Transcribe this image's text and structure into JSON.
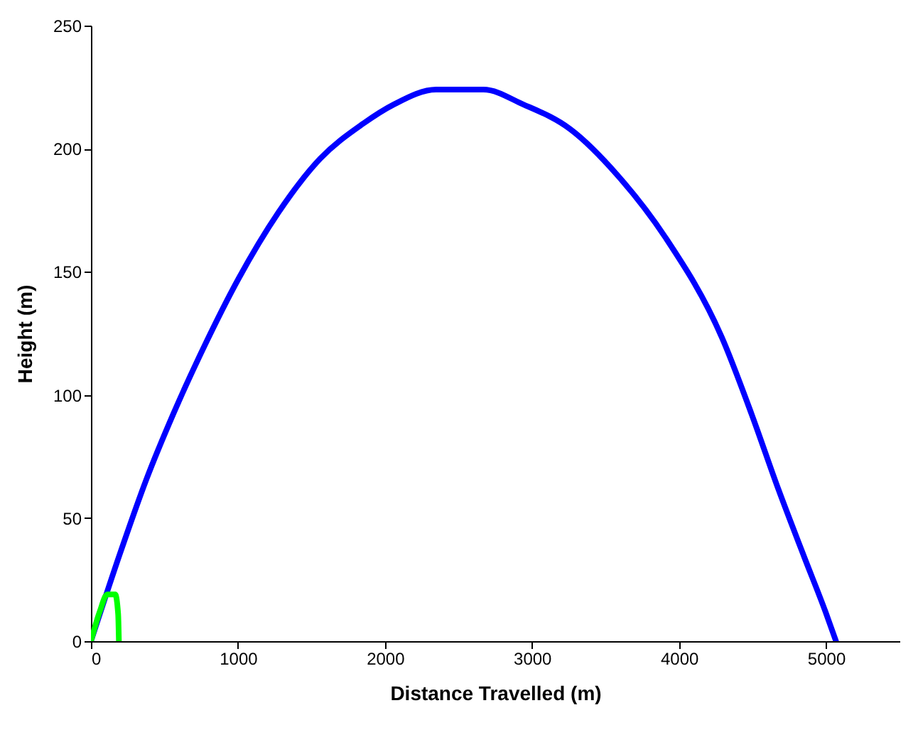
{
  "chart_data": {
    "type": "line",
    "xlabel": "Distance Travelled (m)",
    "ylabel": "Height (m)",
    "xlim": [
      0,
      5500
    ],
    "xticks": [
      0,
      1000,
      2000,
      3000,
      4000,
      5000
    ],
    "ylim": [
      0,
      250
    ],
    "yticks": [
      0,
      50,
      100,
      150,
      200,
      250
    ],
    "grid": false,
    "marker": "none",
    "line_style": "solid",
    "series": [
      {
        "color": "#0000ff",
        "x": [
          0,
          200,
          379,
          558,
          773,
          1002,
          1274,
          1560,
          1847,
          2061,
          2348,
          2670,
          2940,
          3259,
          3585,
          3907,
          4294,
          4495,
          4674,
          4853,
          4996,
          5068
        ],
        "values": [
          0,
          36,
          66,
          92,
          120,
          147,
          174,
          196,
          210,
          218,
          224,
          224,
          218,
          208,
          189,
          164,
          123,
          92,
          62,
          34,
          12,
          0
        ]
      },
      {
        "color": "#00ff00",
        "x": [
          0,
          60,
          111,
          165,
          185,
          190
        ],
        "values": [
          0,
          12,
          19,
          19,
          11,
          0
        ]
      }
    ]
  }
}
